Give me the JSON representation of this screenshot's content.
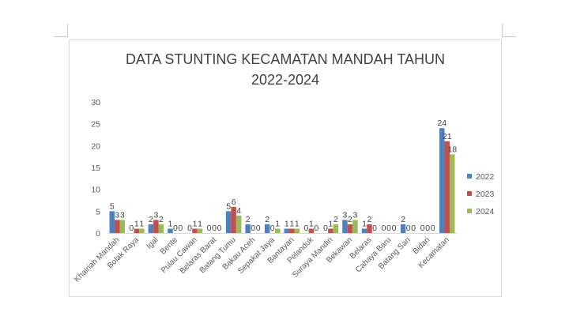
{
  "chart_data": {
    "type": "bar",
    "title": "DATA STUNTING KECAMATAN MANDAH TAHUN\n2022-2024",
    "xlabel": "",
    "ylabel": "",
    "ylim": [
      0,
      30
    ],
    "y_ticks": [
      0,
      5,
      10,
      15,
      20,
      25,
      30
    ],
    "grid": false,
    "legend_position": "right",
    "categories": [
      "Khairiah Mandah",
      "Bolak Raya",
      "Igal",
      "Bente",
      "Pulau Cawan",
      "Belaras Barat",
      "Batang Tumu",
      "Bakau Aceh",
      "Sepakat Jaya",
      "Bantayan",
      "Pelanduk",
      "Suraya Mandiri",
      "Bekawan",
      "Belaras",
      "Cahaya Baru",
      "Batang Sari",
      "Bidari",
      "Kecamatan"
    ],
    "series": [
      {
        "name": "2022",
        "color": "#4f81bd",
        "values": [
          5,
          0,
          2,
          1,
          0,
          0,
          5,
          2,
          2,
          1,
          0,
          0,
          3,
          1,
          0,
          2,
          0,
          24
        ]
      },
      {
        "name": "2023",
        "color": "#c0504d",
        "values": [
          3,
          1,
          3,
          0,
          1,
          0,
          6,
          0,
          0,
          1,
          1,
          1,
          2,
          2,
          0,
          0,
          0,
          21
        ]
      },
      {
        "name": "2024",
        "color": "#9bbb59",
        "values": [
          3,
          1,
          2,
          0,
          1,
          0,
          4,
          0,
          1,
          1,
          0,
          2,
          3,
          0,
          0,
          0,
          0,
          18
        ]
      }
    ]
  }
}
